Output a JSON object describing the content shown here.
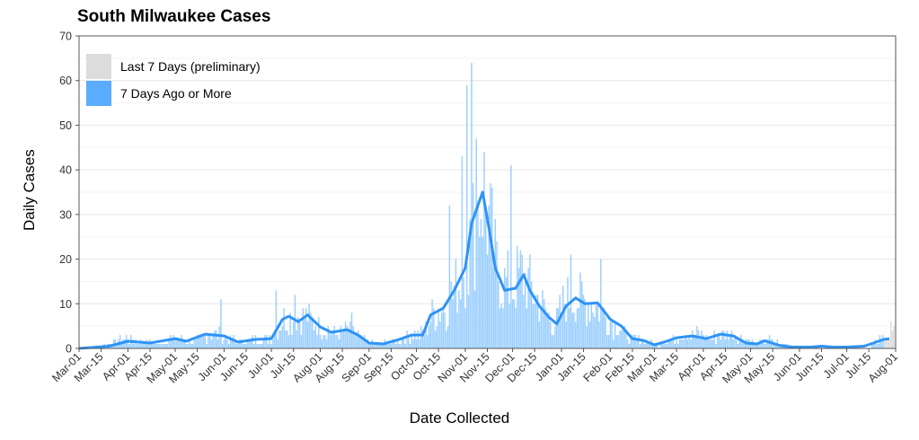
{
  "chart_data": {
    "type": "bar",
    "title": "South Milwaukee Cases",
    "xlabel": "Date Collected",
    "ylabel": "Daily Cases",
    "ylim": [
      0,
      70
    ],
    "yticks": [
      0,
      10,
      20,
      30,
      40,
      50,
      60,
      70
    ],
    "xlim": [
      "2020-03-01",
      "2021-08-01"
    ],
    "xtick_labels": [
      "Mar-01",
      "Mar-15",
      "Apr-01",
      "Apr-15",
      "May-01",
      "May-15",
      "Jun-01",
      "Jun-15",
      "Jul-01",
      "Jul-15",
      "Aug-01",
      "Aug-15",
      "Sep-01",
      "Sep-15",
      "Oct-01",
      "Oct-15",
      "Nov-01",
      "Nov-15",
      "Dec-01",
      "Dec-15",
      "Jan-01",
      "Jan-15",
      "Feb-01",
      "Feb-15",
      "Mar-01",
      "Mar-15",
      "Apr-01",
      "Apr-15",
      "May-01",
      "May-15",
      "Jun-01",
      "Jun-15",
      "Jul-01",
      "Jul-15",
      "Aug-01"
    ],
    "xtick_dates": [
      "2020-03-01",
      "2020-03-15",
      "2020-04-01",
      "2020-04-15",
      "2020-05-01",
      "2020-05-15",
      "2020-06-01",
      "2020-06-15",
      "2020-07-01",
      "2020-07-15",
      "2020-08-01",
      "2020-08-15",
      "2020-09-01",
      "2020-09-15",
      "2020-10-01",
      "2020-10-15",
      "2020-11-01",
      "2020-11-15",
      "2020-12-01",
      "2020-12-15",
      "2021-01-01",
      "2021-01-15",
      "2021-02-01",
      "2021-02-15",
      "2021-03-01",
      "2021-03-15",
      "2021-04-01",
      "2021-04-15",
      "2021-05-01",
      "2021-05-15",
      "2021-06-01",
      "2021-06-15",
      "2021-07-01",
      "2021-07-15",
      "2021-08-01"
    ],
    "grid": true,
    "legend_position": "top-left",
    "legend": [
      {
        "label": "Last 7 Days (preliminary)",
        "color": "#dcdcdc"
      },
      {
        "label": "7 Days Ago or More",
        "color": "#5aacff"
      }
    ],
    "bar_color": "#9ccfff",
    "preliminary_color": "#dcdcdc",
    "line_color": "#2f93f5",
    "preliminary_start": "2021-07-25",
    "daily_cases_keypoints": [
      [
        "2020-03-01",
        0
      ],
      [
        "2020-03-12",
        0
      ],
      [
        "2020-03-20",
        1
      ],
      [
        "2020-03-28",
        2
      ],
      [
        "2020-04-05",
        2
      ],
      [
        "2020-04-12",
        1
      ],
      [
        "2020-04-20",
        1
      ],
      [
        "2020-04-28",
        2
      ],
      [
        "2020-05-05",
        2
      ],
      [
        "2020-05-12",
        1
      ],
      [
        "2020-05-20",
        3
      ],
      [
        "2020-05-28",
        3
      ],
      [
        "2020-06-05",
        2
      ],
      [
        "2020-06-12",
        1
      ],
      [
        "2020-06-20",
        2
      ],
      [
        "2020-06-28",
        2
      ],
      [
        "2020-07-05",
        4
      ],
      [
        "2020-07-10",
        7
      ],
      [
        "2020-07-15",
        6
      ],
      [
        "2020-07-22",
        7
      ],
      [
        "2020-07-30",
        5
      ],
      [
        "2020-08-05",
        4
      ],
      [
        "2020-08-12",
        3
      ],
      [
        "2020-08-20",
        4
      ],
      [
        "2020-08-28",
        2
      ],
      [
        "2020-09-05",
        1
      ],
      [
        "2020-09-12",
        1
      ],
      [
        "2020-09-20",
        2
      ],
      [
        "2020-09-28",
        3
      ],
      [
        "2020-10-05",
        3
      ],
      [
        "2020-10-12",
        8
      ],
      [
        "2020-10-20",
        9
      ],
      [
        "2020-10-28",
        14
      ],
      [
        "2020-11-03",
        20
      ],
      [
        "2020-11-08",
        29
      ],
      [
        "2020-11-12",
        35
      ],
      [
        "2020-11-16",
        27
      ],
      [
        "2020-11-20",
        18
      ],
      [
        "2020-11-25",
        14
      ],
      [
        "2020-12-01",
        13
      ],
      [
        "2020-12-07",
        16
      ],
      [
        "2020-12-12",
        13
      ],
      [
        "2020-12-20",
        9
      ],
      [
        "2020-12-28",
        5
      ],
      [
        "2021-01-03",
        10
      ],
      [
        "2021-01-10",
        11
      ],
      [
        "2021-01-16",
        10
      ],
      [
        "2021-01-22",
        10
      ],
      [
        "2021-01-30",
        6
      ],
      [
        "2021-02-06",
        5
      ],
      [
        "2021-02-13",
        2
      ],
      [
        "2021-02-20",
        2
      ],
      [
        "2021-02-28",
        1
      ],
      [
        "2021-03-06",
        1
      ],
      [
        "2021-03-12",
        2
      ],
      [
        "2021-03-20",
        3
      ],
      [
        "2021-03-28",
        3
      ],
      [
        "2021-04-05",
        2
      ],
      [
        "2021-04-12",
        3
      ],
      [
        "2021-04-20",
        3
      ],
      [
        "2021-04-28",
        2
      ],
      [
        "2021-05-05",
        1
      ],
      [
        "2021-05-12",
        2
      ],
      [
        "2021-05-20",
        1
      ],
      [
        "2021-05-28",
        0
      ],
      [
        "2021-06-05",
        0
      ],
      [
        "2021-06-12",
        0
      ],
      [
        "2021-06-20",
        0
      ],
      [
        "2021-06-28",
        0
      ],
      [
        "2021-07-05",
        0
      ],
      [
        "2021-07-15",
        0
      ],
      [
        "2021-07-22",
        2
      ],
      [
        "2021-07-31",
        3
      ]
    ],
    "notable_daily_values": [
      [
        "2020-05-30",
        11
      ],
      [
        "2020-07-04",
        13
      ],
      [
        "2020-07-16",
        12
      ],
      [
        "2020-08-21",
        8
      ],
      [
        "2020-10-22",
        32
      ],
      [
        "2020-10-30",
        43
      ],
      [
        "2020-11-02",
        59
      ],
      [
        "2020-11-05",
        64
      ],
      [
        "2020-11-08",
        47
      ],
      [
        "2020-11-30",
        41
      ],
      [
        "2021-01-07",
        21
      ],
      [
        "2021-01-26",
        20
      ],
      [
        "2021-07-29",
        6
      ]
    ],
    "seven_day_average": [
      [
        "2020-03-01",
        0
      ],
      [
        "2020-03-20",
        0.5
      ],
      [
        "2020-04-01",
        1.6
      ],
      [
        "2020-04-15",
        1.2
      ],
      [
        "2020-05-01",
        2.2
      ],
      [
        "2020-05-08",
        1.6
      ],
      [
        "2020-05-20",
        3.2
      ],
      [
        "2020-06-01",
        2.8
      ],
      [
        "2020-06-10",
        1.4
      ],
      [
        "2020-06-20",
        2.0
      ],
      [
        "2020-07-01",
        2.2
      ],
      [
        "2020-07-08",
        6.5
      ],
      [
        "2020-07-12",
        7.2
      ],
      [
        "2020-07-18",
        6.0
      ],
      [
        "2020-07-24",
        7.5
      ],
      [
        "2020-08-01",
        4.8
      ],
      [
        "2020-08-08",
        3.6
      ],
      [
        "2020-08-18",
        4.2
      ],
      [
        "2020-08-25",
        3.0
      ],
      [
        "2020-09-01",
        1.2
      ],
      [
        "2020-09-10",
        1.0
      ],
      [
        "2020-09-20",
        2.0
      ],
      [
        "2020-09-28",
        3.0
      ],
      [
        "2020-10-05",
        3.0
      ],
      [
        "2020-10-10",
        7.5
      ],
      [
        "2020-10-18",
        9.0
      ],
      [
        "2020-10-25",
        13.0
      ],
      [
        "2020-11-01",
        18.0
      ],
      [
        "2020-11-05",
        28.0
      ],
      [
        "2020-11-08",
        31.0
      ],
      [
        "2020-11-12",
        35.0
      ],
      [
        "2020-11-16",
        27.0
      ],
      [
        "2020-11-20",
        18.0
      ],
      [
        "2020-11-26",
        13.0
      ],
      [
        "2020-12-03",
        13.5
      ],
      [
        "2020-12-08",
        16.5
      ],
      [
        "2020-12-12",
        13.0
      ],
      [
        "2020-12-18",
        9.5
      ],
      [
        "2020-12-24",
        7.0
      ],
      [
        "2020-12-29",
        5.5
      ],
      [
        "2021-01-04",
        9.5
      ],
      [
        "2021-01-10",
        11.3
      ],
      [
        "2021-01-16",
        10.0
      ],
      [
        "2021-01-24",
        10.2
      ],
      [
        "2021-02-01",
        6.5
      ],
      [
        "2021-02-08",
        5.0
      ],
      [
        "2021-02-15",
        2.2
      ],
      [
        "2021-02-22",
        1.8
      ],
      [
        "2021-03-01",
        0.8
      ],
      [
        "2021-03-08",
        1.5
      ],
      [
        "2021-03-15",
        2.4
      ],
      [
        "2021-03-25",
        2.8
      ],
      [
        "2021-04-03",
        2.2
      ],
      [
        "2021-04-12",
        3.2
      ],
      [
        "2021-04-20",
        2.8
      ],
      [
        "2021-04-28",
        1.2
      ],
      [
        "2021-05-05",
        1.0
      ],
      [
        "2021-05-10",
        1.7
      ],
      [
        "2021-05-20",
        0.6
      ],
      [
        "2021-05-28",
        0.3
      ],
      [
        "2021-06-08",
        0.3
      ],
      [
        "2021-06-15",
        0.5
      ],
      [
        "2021-06-22",
        0.3
      ],
      [
        "2021-07-01",
        0.3
      ],
      [
        "2021-07-12",
        0.5
      ],
      [
        "2021-07-18",
        1.2
      ],
      [
        "2021-07-24",
        2.0
      ],
      [
        "2021-07-28",
        2.2
      ]
    ]
  }
}
